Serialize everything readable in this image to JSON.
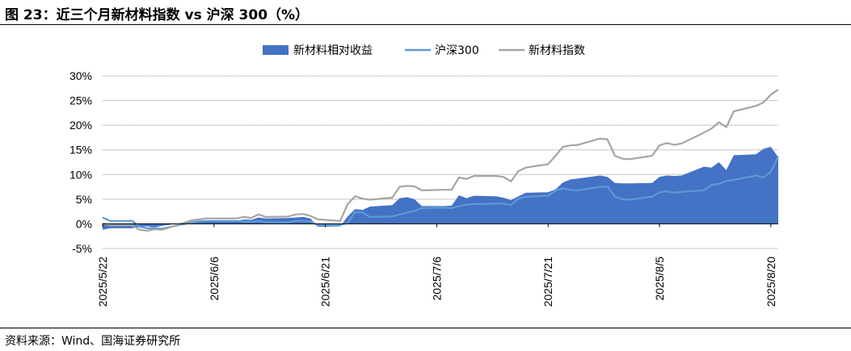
{
  "figure": {
    "title": "图 23：近三个月新材料指数 vs 沪深 300（%）",
    "source": "资料来源：Wind、国海证券研究所"
  },
  "chart_data": {
    "type": "area+line",
    "title": "",
    "xlabel": "",
    "ylabel": "",
    "ylim": [
      -5,
      30
    ],
    "yticks": [
      -5,
      0,
      5,
      10,
      15,
      20,
      25,
      30
    ],
    "y_tick_labels": [
      "-5%",
      "0%",
      "5%",
      "10%",
      "15%",
      "20%",
      "25%",
      "30%"
    ],
    "x_tick_labels": [
      "2025/5/22",
      "2025/6/6",
      "2025/6/21",
      "2025/7/6",
      "2025/7/21",
      "2025/8/5",
      "2025/8/20"
    ],
    "x_tick_dates": [
      "2025-05-22",
      "2025-06-06",
      "2025-06-21",
      "2025-07-06",
      "2025-07-21",
      "2025-08-05",
      "2025-08-20"
    ],
    "grid": "horizontal dotted",
    "legend_position": "top-center",
    "dates": [
      "2025-05-22",
      "2025-05-23",
      "2025-05-26",
      "2025-05-27",
      "2025-05-28",
      "2025-05-29",
      "2025-05-30",
      "2025-06-03",
      "2025-06-04",
      "2025-06-05",
      "2025-06-06",
      "2025-06-09",
      "2025-06-10",
      "2025-06-11",
      "2025-06-12",
      "2025-06-13",
      "2025-06-16",
      "2025-06-17",
      "2025-06-18",
      "2025-06-19",
      "2025-06-20",
      "2025-06-23",
      "2025-06-24",
      "2025-06-25",
      "2025-06-26",
      "2025-06-27",
      "2025-06-30",
      "2025-07-01",
      "2025-07-02",
      "2025-07-03",
      "2025-07-04",
      "2025-07-07",
      "2025-07-08",
      "2025-07-09",
      "2025-07-10",
      "2025-07-11",
      "2025-07-14",
      "2025-07-15",
      "2025-07-16",
      "2025-07-17",
      "2025-07-18",
      "2025-07-21",
      "2025-07-22",
      "2025-07-23",
      "2025-07-24",
      "2025-07-25",
      "2025-07-28",
      "2025-07-29",
      "2025-07-30",
      "2025-07-31",
      "2025-08-01",
      "2025-08-04",
      "2025-08-05",
      "2025-08-06",
      "2025-08-07",
      "2025-08-08",
      "2025-08-11",
      "2025-08-12",
      "2025-08-13",
      "2025-08-14",
      "2025-08-15",
      "2025-08-18",
      "2025-08-19",
      "2025-08-20",
      "2025-08-21"
    ],
    "series": [
      {
        "name": "新材料相对收益",
        "type": "area",
        "color": "#4472C4",
        "values": [
          -1.2,
          -0.9,
          -0.9,
          -0.6,
          -0.5,
          -0.7,
          -0.4,
          0.4,
          0.4,
          0.6,
          0.6,
          0.6,
          0.9,
          0.8,
          1.3,
          1.1,
          1.2,
          1.3,
          1.4,
          1.1,
          -0.6,
          -0.5,
          1.5,
          3.0,
          2.8,
          3.5,
          3.8,
          5.2,
          5.4,
          5.0,
          3.6,
          3.6,
          3.7,
          5.8,
          5.2,
          5.7,
          5.6,
          5.3,
          4.8,
          5.6,
          6.3,
          6.4,
          7.0,
          8.4,
          9.0,
          9.2,
          9.8,
          9.5,
          8.3,
          8.2,
          8.2,
          8.3,
          9.5,
          9.8,
          9.7,
          9.8,
          11.6,
          11.4,
          12.5,
          10.9,
          13.9,
          14.1,
          15.2,
          15.6,
          13.5
        ]
      },
      {
        "name": "沪深300",
        "type": "line",
        "color": "#5B9BD5",
        "values": [
          1.3,
          0.6,
          0.6,
          -0.6,
          -0.9,
          -0.9,
          -1.0,
          0.3,
          0.5,
          0.6,
          0.6,
          0.6,
          0.5,
          0.4,
          0.6,
          0.3,
          0.3,
          0.6,
          0.6,
          0.5,
          -0.3,
          -0.2,
          0.2,
          2.4,
          2.3,
          1.4,
          1.5,
          1.9,
          2.3,
          2.6,
          3.2,
          3.3,
          3.2,
          3.6,
          3.9,
          4.0,
          4.1,
          4.1,
          3.8,
          5.1,
          5.5,
          5.7,
          6.8,
          7.2,
          6.9,
          6.8,
          7.5,
          7.6,
          5.5,
          5.0,
          4.9,
          5.5,
          6.4,
          6.6,
          6.3,
          6.5,
          6.8,
          7.9,
          8.1,
          8.7,
          8.9,
          9.8,
          9.4,
          10.6,
          13.7
        ]
      },
      {
        "name": "新材料指数",
        "type": "line",
        "color": "#A5A5A5",
        "values": [
          0.1,
          -0.3,
          -0.3,
          -1.2,
          -1.4,
          -1.1,
          -1.2,
          0.7,
          0.9,
          1.1,
          1.1,
          1.1,
          1.4,
          1.2,
          1.9,
          1.4,
          1.5,
          1.9,
          2.0,
          1.6,
          0.9,
          0.6,
          4.0,
          5.6,
          5.1,
          4.9,
          5.3,
          7.5,
          7.7,
          7.6,
          6.8,
          6.9,
          6.9,
          9.4,
          9.1,
          9.7,
          9.7,
          9.5,
          8.6,
          10.7,
          11.4,
          12.1,
          13.8,
          15.6,
          15.9,
          16.0,
          17.3,
          17.1,
          13.8,
          13.2,
          13.1,
          13.8,
          15.9,
          16.4,
          16.0,
          16.3,
          18.5,
          19.3,
          20.6,
          19.6,
          22.8,
          23.9,
          24.6,
          26.2,
          27.2
        ]
      }
    ]
  }
}
